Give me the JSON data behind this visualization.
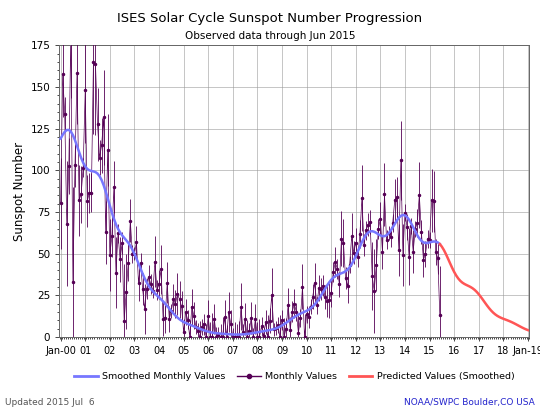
{
  "title": "ISES Solar Cycle Sunspot Number Progression",
  "subtitle": "Observed data through Jun 2015",
  "ylabel": "Sunspot Number",
  "footer_left": "Updated 2015 Jul  6",
  "footer_right": "NOAA/SWPC Boulder,CO USA",
  "ylim": [
    0,
    175
  ],
  "yticks": [
    0,
    25,
    50,
    75,
    100,
    125,
    150,
    175
  ],
  "smoothed_color": "#7777ff",
  "monthly_color": "#550055",
  "predicted_color": "#ff5555",
  "background_color": "#ffffff",
  "grid_color": "#999999",
  "figsize": [
    5.4,
    4.11
  ],
  "dpi": 100
}
